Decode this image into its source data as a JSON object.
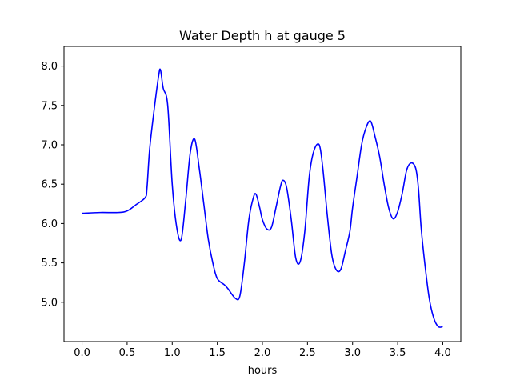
{
  "chart_data": {
    "type": "line",
    "title": "Water Depth h at gauge 5",
    "xlabel": "hours",
    "ylabel": "",
    "xlim": [
      -0.2,
      4.2
    ],
    "ylim": [
      4.5,
      8.25
    ],
    "xticks": [
      0.0,
      0.5,
      1.0,
      1.5,
      2.0,
      2.5,
      3.0,
      3.5,
      4.0
    ],
    "xtick_labels": [
      "0.0",
      "0.5",
      "1.0",
      "1.5",
      "2.0",
      "2.5",
      "3.0",
      "3.5",
      "4.0"
    ],
    "yticks": [
      5.0,
      5.5,
      6.0,
      6.5,
      7.0,
      7.5,
      8.0
    ],
    "ytick_labels": [
      "5.0",
      "5.5",
      "6.0",
      "6.5",
      "7.0",
      "7.5",
      "8.0"
    ],
    "grid": false,
    "series": [
      {
        "color": "#0000ff",
        "x": [
          0.0,
          0.2,
          0.4,
          0.5,
          0.6,
          0.7,
          0.72,
          0.75,
          0.8,
          0.85,
          0.87,
          0.9,
          0.95,
          1.0,
          1.05,
          1.1,
          1.15,
          1.2,
          1.25,
          1.3,
          1.35,
          1.4,
          1.45,
          1.5,
          1.58,
          1.62,
          1.7,
          1.75,
          1.8,
          1.85,
          1.9,
          1.93,
          1.97,
          2.0,
          2.05,
          2.1,
          2.15,
          2.2,
          2.23,
          2.27,
          2.32,
          2.37,
          2.42,
          2.47,
          2.52,
          2.57,
          2.63,
          2.67,
          2.72,
          2.77,
          2.82,
          2.87,
          2.92,
          2.97,
          3.0,
          3.05,
          3.1,
          3.15,
          3.2,
          3.25,
          3.3,
          3.35,
          3.4,
          3.45,
          3.5,
          3.55,
          3.6,
          3.65,
          3.7,
          3.73,
          3.76,
          3.8,
          3.85,
          3.9,
          3.95,
          4.0
        ],
        "y": [
          6.13,
          6.14,
          6.14,
          6.16,
          6.24,
          6.33,
          6.45,
          6.95,
          7.45,
          7.88,
          7.95,
          7.72,
          7.5,
          6.5,
          5.95,
          5.8,
          6.3,
          6.9,
          7.07,
          6.7,
          6.25,
          5.8,
          5.5,
          5.3,
          5.22,
          5.17,
          5.05,
          5.08,
          5.5,
          6.05,
          6.33,
          6.37,
          6.2,
          6.05,
          5.93,
          5.95,
          6.2,
          6.47,
          6.55,
          6.45,
          6.05,
          5.56,
          5.52,
          5.9,
          6.6,
          6.92,
          7.0,
          6.7,
          6.1,
          5.6,
          5.41,
          5.42,
          5.65,
          5.9,
          6.2,
          6.6,
          7.0,
          7.22,
          7.3,
          7.1,
          6.85,
          6.5,
          6.2,
          6.06,
          6.15,
          6.38,
          6.68,
          6.77,
          6.7,
          6.45,
          5.95,
          5.5,
          5.05,
          4.8,
          4.69,
          4.69
        ]
      }
    ]
  }
}
